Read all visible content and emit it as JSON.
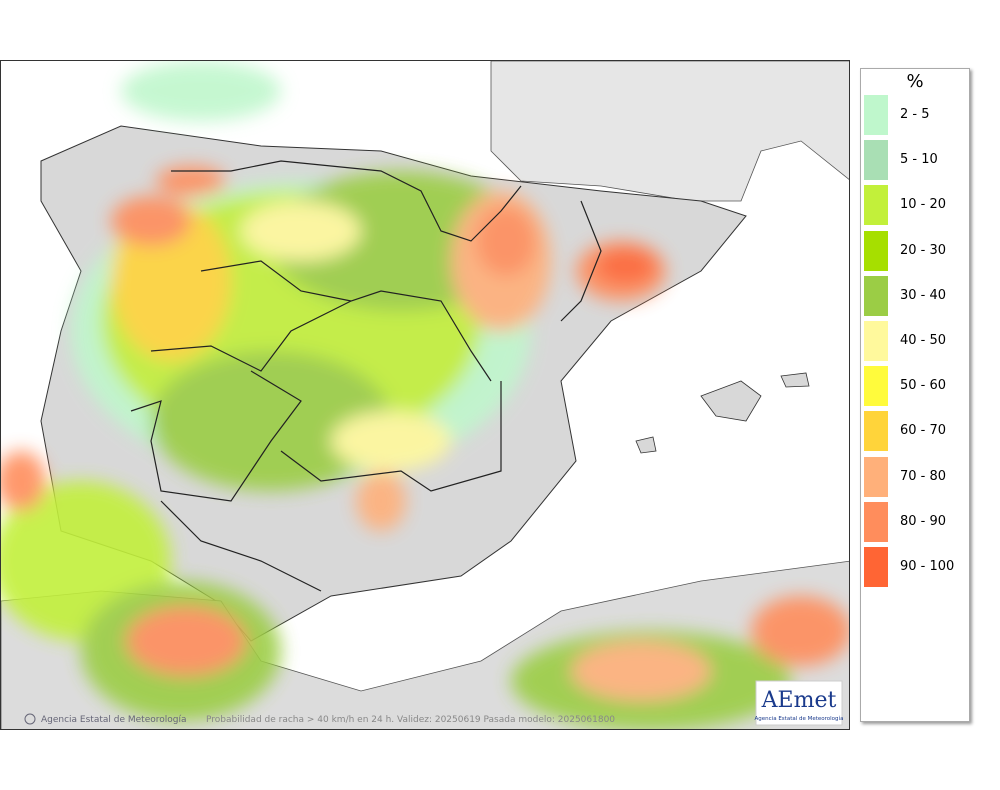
{
  "legend": {
    "title": "%",
    "items": [
      {
        "label": "2 - 5",
        "color": "#bff7cc"
      },
      {
        "label": "5 - 10",
        "color": "#a9dfb4"
      },
      {
        "label": "10 - 20",
        "color": "#c2f03a"
      },
      {
        "label": "20 - 30",
        "color": "#a6df00"
      },
      {
        "label": "30 - 40",
        "color": "#9bcd45"
      },
      {
        "label": "40 - 50",
        "color": "#fff99c"
      },
      {
        "label": "50 - 60",
        "color": "#fffb3c"
      },
      {
        "label": "60 - 70",
        "color": "#ffd43a"
      },
      {
        "label": "70 - 80",
        "color": "#ffb07a"
      },
      {
        "label": "80 - 90",
        "color": "#ff8d5c"
      },
      {
        "label": "90 - 100",
        "color": "#ff6534"
      }
    ]
  },
  "footer": {
    "agency": "Agencia Estatal de Meteorología",
    "caption": "Probabilidad de racha > 40 km/h en 24 h. Validez: 20250619 Pasada modelo: 2025061800"
  },
  "logo": {
    "name": "AEmet",
    "subtitle": "Agencia Estatal de Meteorología"
  }
}
